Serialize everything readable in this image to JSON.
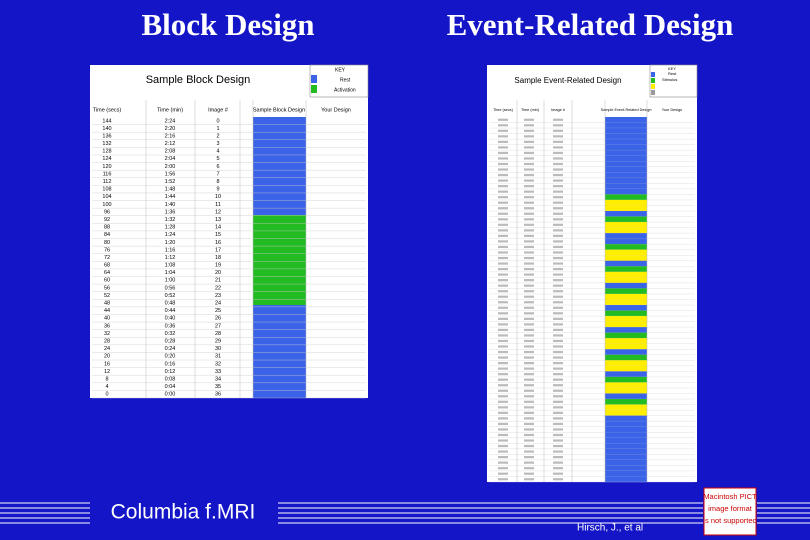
{
  "slide": {
    "title_left": "Block Design",
    "title_right": "Event-Related Design",
    "footer": "Columbia  f.MRI",
    "credit": "Hirsch, J., et al",
    "pict_notice": [
      "Macintosh PICT",
      "image format",
      "is not supported"
    ]
  },
  "block_table": {
    "title": "Sample Block Design",
    "key": {
      "title": "KEY",
      "items": [
        "Rest",
        "Activation"
      ]
    },
    "headers": [
      "Time (secs)",
      "Time (min)",
      "Image #",
      "Sample Block Design",
      "Your Design"
    ],
    "rows": [
      [
        144,
        "2:24",
        0
      ],
      [
        140,
        "2:20",
        1
      ],
      [
        136,
        "2:16",
        2
      ],
      [
        132,
        "2:12",
        3
      ],
      [
        128,
        "2:08",
        4
      ],
      [
        124,
        "2:04",
        5
      ],
      [
        120,
        "2:00",
        6
      ],
      [
        116,
        "1:56",
        7
      ],
      [
        112,
        "1:52",
        8
      ],
      [
        108,
        "1:48",
        9
      ],
      [
        104,
        "1:44",
        10
      ],
      [
        100,
        "1:40",
        11
      ],
      [
        96,
        "1:36",
        12
      ],
      [
        92,
        "1:32",
        13
      ],
      [
        88,
        "1:28",
        14
      ],
      [
        84,
        "1:24",
        15
      ],
      [
        80,
        "1:20",
        16
      ],
      [
        76,
        "1:16",
        17
      ],
      [
        72,
        "1:12",
        18
      ],
      [
        68,
        "1:08",
        19
      ],
      [
        64,
        "1:04",
        20
      ],
      [
        60,
        "1:00",
        21
      ],
      [
        56,
        "0:56",
        22
      ],
      [
        52,
        "0:52",
        23
      ],
      [
        48,
        "0:48",
        24
      ],
      [
        44,
        "0:44",
        25
      ],
      [
        40,
        "0:40",
        26
      ],
      [
        36,
        "0:36",
        27
      ],
      [
        32,
        "0:32",
        28
      ],
      [
        28,
        "0:28",
        29
      ],
      [
        24,
        "0:24",
        30
      ],
      [
        20,
        "0:20",
        31
      ],
      [
        16,
        "0:16",
        32
      ],
      [
        12,
        "0:12",
        33
      ],
      [
        8,
        "0:08",
        34
      ],
      [
        4,
        "0:04",
        35
      ],
      [
        0,
        "0:00",
        36
      ]
    ]
  },
  "event_table": {
    "title": "Sample Event-Related Design",
    "key": {
      "title": "KEY",
      "items": [
        "Rest",
        "Stimulus"
      ]
    },
    "headers": [
      "Time (secs)",
      "Time (min)",
      "Image #",
      "Sample Event-Related Design",
      "Your Design"
    ]
  }
}
